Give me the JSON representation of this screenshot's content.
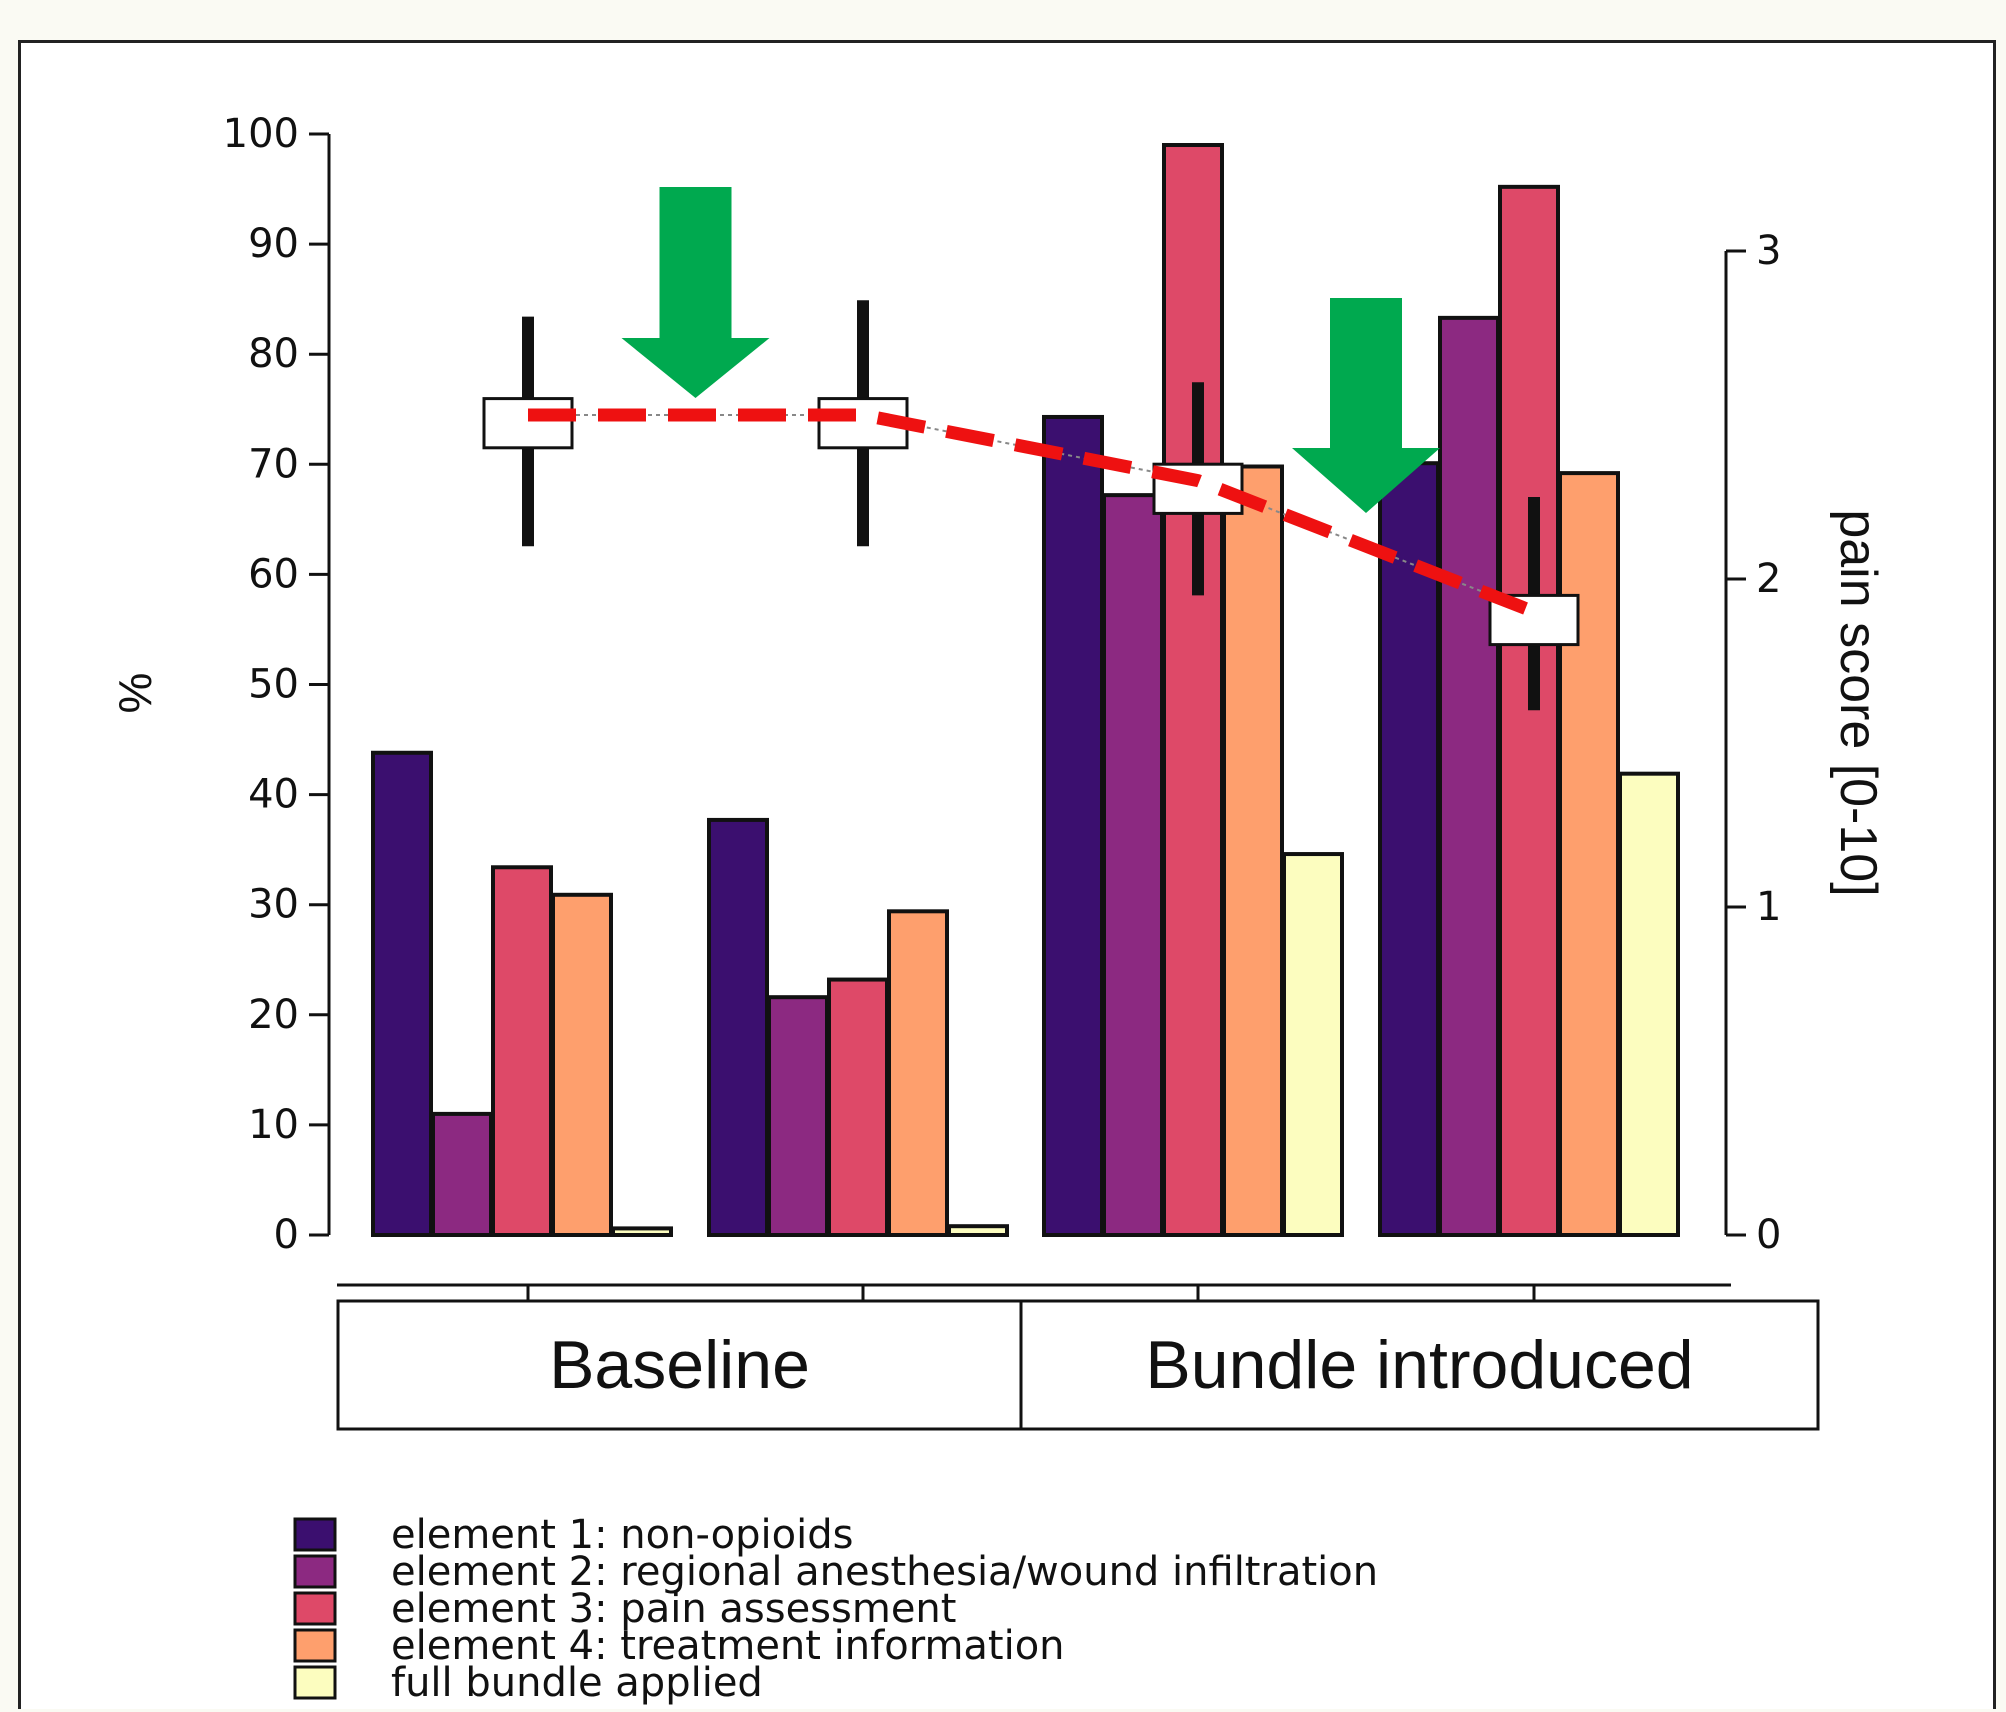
{
  "chart_data": {
    "type": "bar",
    "title": "",
    "xlabel": "",
    "ylabel": "%",
    "y2label": "pain score [0-10]",
    "ylim": [
      0,
      100
    ],
    "y2lim": [
      0,
      3
    ],
    "yticks": [
      "0",
      "10",
      "20",
      "30",
      "40",
      "50",
      "60",
      "70",
      "80",
      "90",
      "100"
    ],
    "y2ticks": [
      "0",
      "1",
      "2",
      "3"
    ],
    "grid": false,
    "legend_position": "bottom",
    "phases": [
      {
        "label": "Baseline",
        "groups": [
          0,
          1
        ]
      },
      {
        "label": "Bundle introduced",
        "groups": [
          2,
          3
        ]
      }
    ],
    "series": [
      {
        "name": "element 1: non-opioids",
        "color": "#3b0f6f",
        "values": [
          43.8,
          37.7,
          74.3,
          70.1
        ]
      },
      {
        "name": "element 2: regional anesthesia/wound infiltration",
        "color": "#8c2981",
        "values": [
          11.0,
          21.6,
          67.2,
          83.3
        ]
      },
      {
        "name": "element 3: pain assessment",
        "color": "#de4968",
        "values": [
          33.4,
          23.2,
          99.0,
          95.2
        ]
      },
      {
        "name": "element 4: treatment information",
        "color": "#fe9f6d",
        "values": [
          30.9,
          29.4,
          69.8,
          69.2
        ]
      },
      {
        "name": "full bundle applied",
        "color": "#fcfdbf",
        "values": [
          0.6,
          0.8,
          34.6,
          41.9
        ]
      }
    ],
    "pain_score": {
      "mean": [
        2.5,
        2.5,
        2.3,
        1.9
      ],
      "box_low": [
        2.4,
        2.4,
        2.2,
        1.8
      ],
      "box_high": [
        2.55,
        2.55,
        2.35,
        1.95
      ],
      "whisker_low": [
        2.1,
        2.1,
        1.95,
        1.6
      ],
      "whisker_high": [
        2.8,
        2.85,
        2.6,
        2.25
      ],
      "trend_color": "#ee1111"
    },
    "arrows": {
      "color": "#00a94f",
      "after_groups": [
        0,
        2
      ]
    }
  }
}
